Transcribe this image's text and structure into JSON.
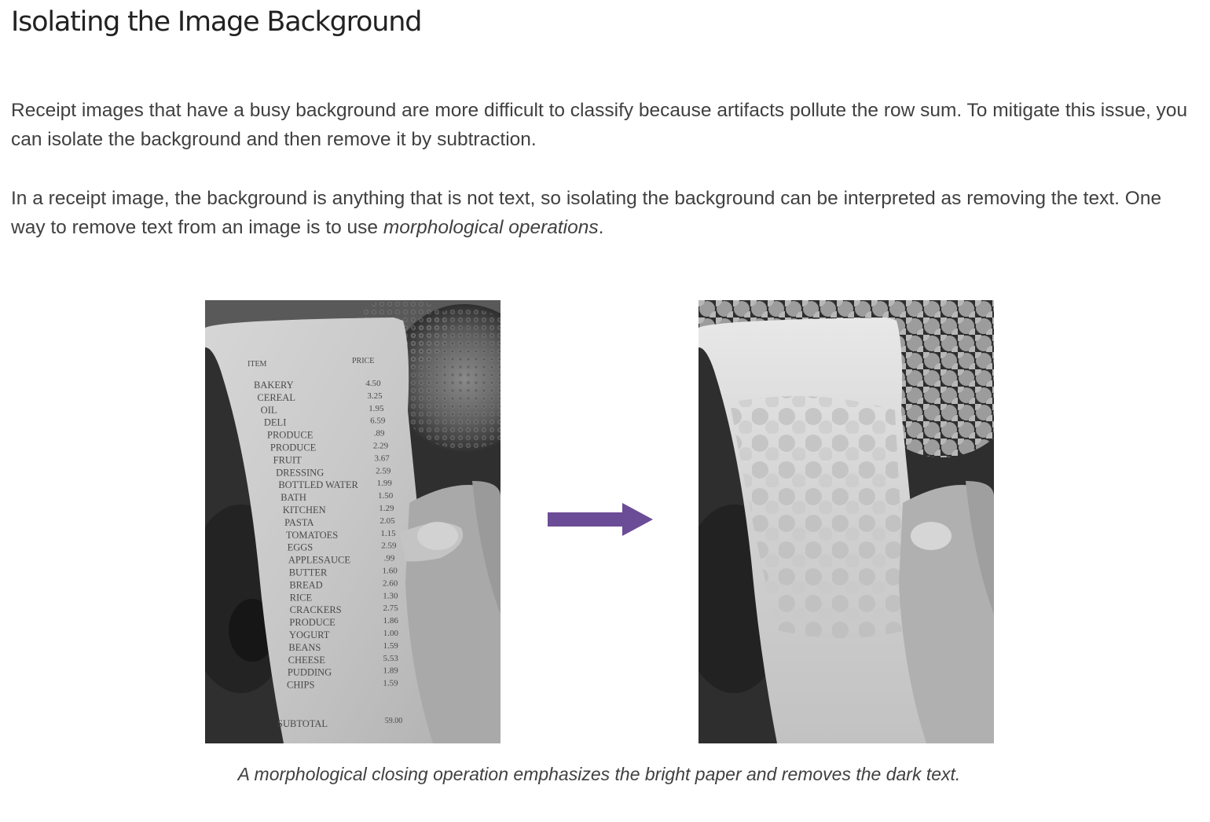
{
  "heading": "Isolating the Image Background",
  "paragraph1": "Receipt images that have a busy background are more difficult to classify because artifacts pollute the row sum. To mitigate this issue, you can isolate the background and then remove it by subtraction.",
  "paragraph2_before": "In a receipt image, the background is anything that is not text, so isolating the background can be interpreted as removing the text. One way to remove text from an image is to use ",
  "paragraph2_emphasis": "morphological operations",
  "paragraph2_after": ".",
  "figure": {
    "left_image_label": "receipt-photo-grayscale",
    "right_image_label": "receipt-photo-closed",
    "arrow_color": "#6b4c96",
    "caption": "A morphological closing operation emphasizes the bright paper and removes the dark text.",
    "receipt": {
      "header_item": "ITEM",
      "header_price": "PRICE",
      "items": [
        {
          "name": "BAKERY",
          "price": "4.50"
        },
        {
          "name": "CEREAL",
          "price": "3.25"
        },
        {
          "name": "OIL",
          "price": "1.95"
        },
        {
          "name": "DELI",
          "price": "6.59"
        },
        {
          "name": "PRODUCE",
          "price": ".89"
        },
        {
          "name": "PRODUCE",
          "price": "2.29"
        },
        {
          "name": "FRUIT",
          "price": "3.67"
        },
        {
          "name": "DRESSING",
          "price": "2.59"
        },
        {
          "name": "BOTTLED WATER",
          "price": "1.99"
        },
        {
          "name": "BATH",
          "price": "1.50"
        },
        {
          "name": "KITCHEN",
          "price": "1.29"
        },
        {
          "name": "PASTA",
          "price": "2.05"
        },
        {
          "name": "TOMATOES",
          "price": "1.15"
        },
        {
          "name": "EGGS",
          "price": "2.59"
        },
        {
          "name": "APPLESAUCE",
          "price": ".99"
        },
        {
          "name": "BUTTER",
          "price": "1.60"
        },
        {
          "name": "BREAD",
          "price": "2.60"
        },
        {
          "name": "RICE",
          "price": "1.30"
        },
        {
          "name": "CRACKERS",
          "price": "2.75"
        },
        {
          "name": "PRODUCE",
          "price": "1.86"
        },
        {
          "name": "YOGURT",
          "price": "1.00"
        },
        {
          "name": "BEANS",
          "price": "1.59"
        },
        {
          "name": "CHEESE",
          "price": "5.53"
        },
        {
          "name": "PUDDING",
          "price": "1.89"
        },
        {
          "name": "CHIPS",
          "price": "1.59"
        }
      ],
      "subtotal_label": "SUBTOTAL",
      "subtotal_value": "59.00"
    }
  }
}
